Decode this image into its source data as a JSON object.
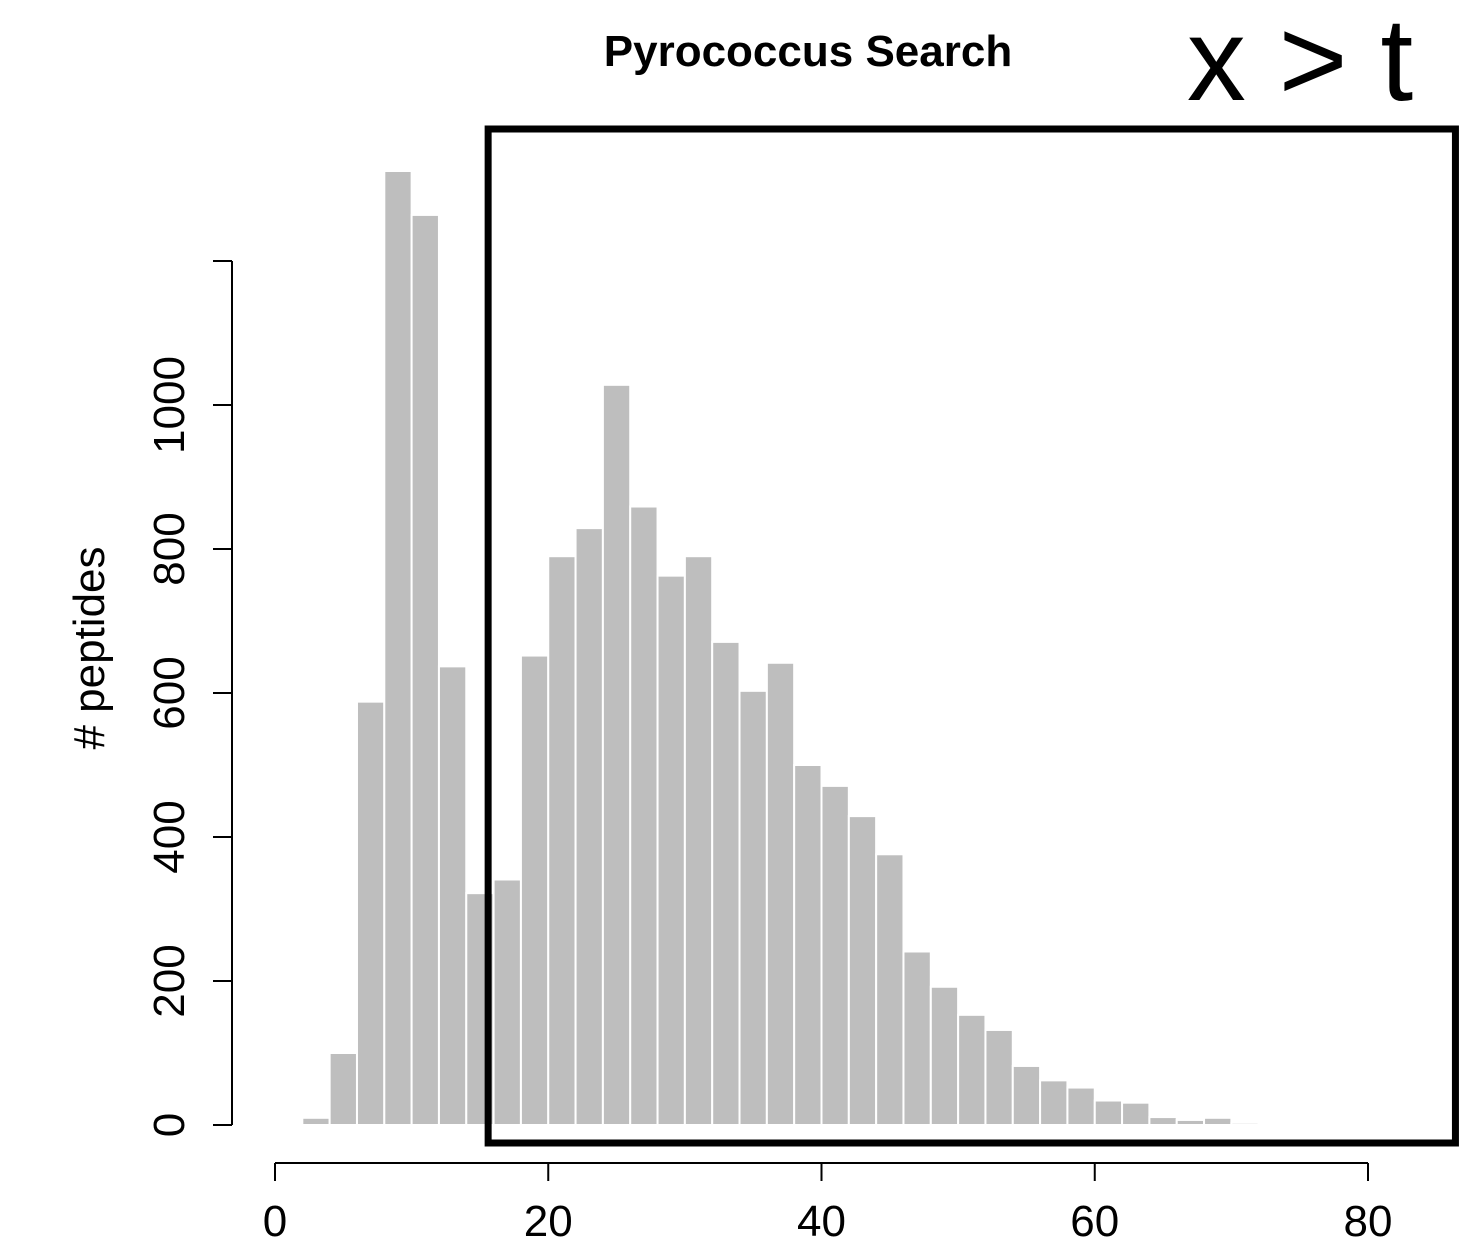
{
  "chart_data": {
    "type": "bar",
    "title": "Pyrococcus Search",
    "annotation": "x > t",
    "xlabel": "",
    "ylabel": "# peptides",
    "bin_width": 2,
    "bin_starts": [
      2,
      4,
      6,
      8,
      10,
      12,
      14,
      16,
      18,
      20,
      22,
      24,
      26,
      28,
      30,
      32,
      34,
      36,
      38,
      40,
      42,
      44,
      46,
      48,
      50,
      52,
      54,
      56,
      58,
      60,
      62,
      64,
      66,
      68,
      70,
      72
    ],
    "values": [
      10,
      100,
      588,
      1325,
      1264,
      637,
      322,
      341,
      652,
      790,
      829,
      1028,
      859,
      763,
      790,
      671,
      603,
      642,
      500,
      471,
      429,
      376,
      241,
      192,
      153,
      132,
      82,
      62,
      52,
      34,
      31,
      11,
      7,
      10,
      3,
      1
    ],
    "xlim": [
      0,
      80
    ],
    "ylim": [
      0,
      1200
    ],
    "x_ticks": [
      0,
      20,
      40,
      60,
      80
    ],
    "y_ticks": [
      0,
      200,
      400,
      600,
      800,
      1000
    ],
    "x_tick_labels": [
      "0",
      "20",
      "40",
      "60",
      "80"
    ],
    "y_tick_labels": [
      "0",
      "200",
      "400",
      "600",
      "800",
      "1000"
    ],
    "highlight_region": {
      "x_start": 15.6,
      "x_end": 86.4
    },
    "grid": false,
    "colors": {
      "bar": "#bebebe",
      "bar_edge": "#ffffff",
      "box": "#000000"
    }
  }
}
